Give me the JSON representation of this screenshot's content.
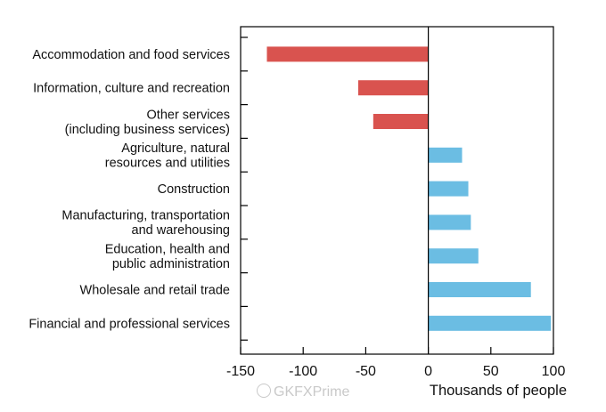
{
  "chart_data": {
    "type": "bar",
    "orientation": "horizontal",
    "categories": [
      [
        "Accommodation and food services"
      ],
      [
        "Information, culture and recreation"
      ],
      [
        "Other services ",
        "(including business services)"
      ],
      [
        "Agriculture, natural",
        "resources and utilities"
      ],
      [
        "Construction"
      ],
      [
        "Manufacturing, transportation",
        "and warehousing"
      ],
      [
        "Education, health and",
        "public administration"
      ],
      [
        "Wholesale and retail trade"
      ],
      [
        "Financial and professional services"
      ]
    ],
    "values": [
      -129,
      -56,
      -44,
      27,
      32,
      34,
      40,
      82,
      98
    ],
    "colors": {
      "negative": "#d9534f",
      "positive": "#6bbde3"
    },
    "xlim": [
      -150,
      100
    ],
    "xticks": [
      -150,
      -100,
      -50,
      0,
      50,
      100
    ],
    "xlabel": "Thousands of people",
    "ylabel": "",
    "title": "",
    "grid": false,
    "legend": "none"
  },
  "watermark": {
    "text": "GKFXPrime"
  }
}
